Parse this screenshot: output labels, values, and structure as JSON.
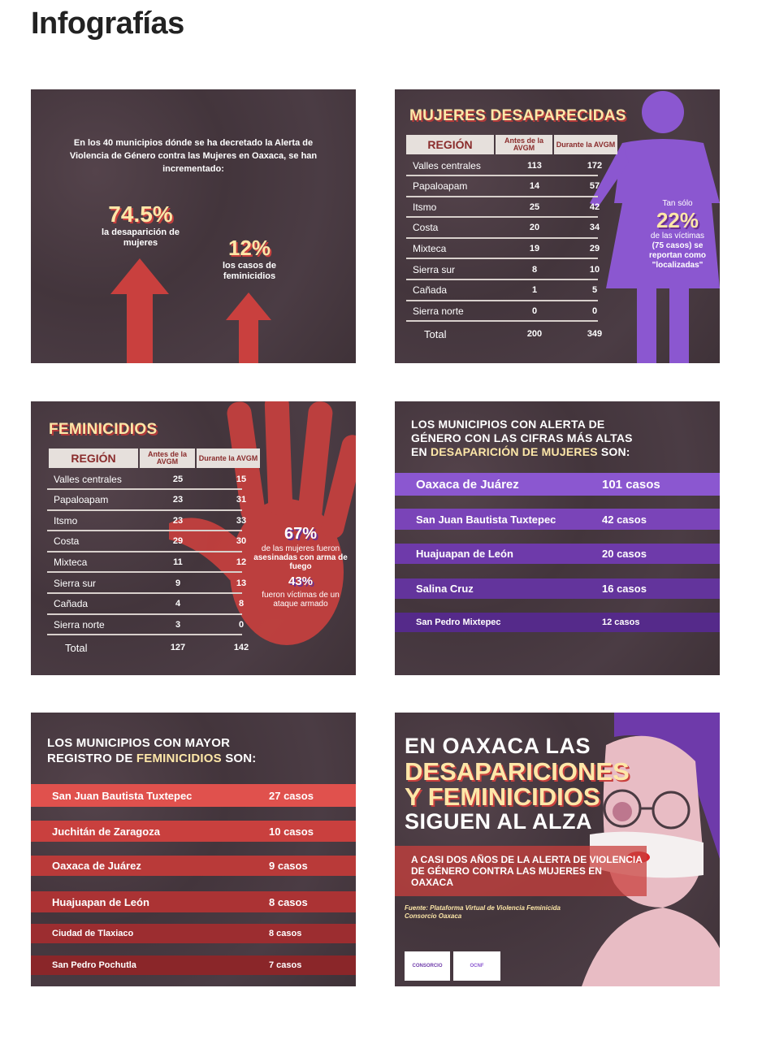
{
  "page": {
    "title": "Infografías"
  },
  "card1": {
    "intro": "En los 40 municipios dónde se ha decretado la Alerta de Violencia de Género contra las Mujeres en Oaxaca, se han incrementado:",
    "stat1_value": "74.5%",
    "stat1_label": "la desaparición de mujeres",
    "stat2_value": "12%",
    "stat2_label": "los casos de feminicidios"
  },
  "card2": {
    "title": "MUJERES DESAPARECIDAS",
    "col_region": "REGIÓN",
    "col_before": "Antes de la AVGM",
    "col_during": "Durante la AVGM",
    "rows": [
      {
        "region": "Valles centrales",
        "before": "113",
        "during": "172"
      },
      {
        "region": "Papaloapam",
        "before": "14",
        "during": "57"
      },
      {
        "region": "Itsmo",
        "before": "25",
        "during": "42"
      },
      {
        "region": "Costa",
        "before": "20",
        "during": "34"
      },
      {
        "region": "Mixteca",
        "before": "19",
        "during": "29"
      },
      {
        "region": "Sierra sur",
        "before": "8",
        "during": "10"
      },
      {
        "region": "Cañada",
        "before": "1",
        "during": "5"
      },
      {
        "region": "Sierra norte",
        "before": "0",
        "during": "0"
      }
    ],
    "total_label": "Total",
    "total_before": "200",
    "total_during": "349",
    "side_pre": "Tan sólo",
    "side_pct": "22%",
    "side_text1": "de las víctimas",
    "side_text2": "(75 casos) se reportan como \"localizadas\""
  },
  "card3": {
    "title": "FEMINICIDIOS",
    "col_region": "REGIÓN",
    "col_before": "Antes de la AVGM",
    "col_during": "Durante la AVGM",
    "rows": [
      {
        "region": "Valles centrales",
        "before": "25",
        "during": "15"
      },
      {
        "region": "Papaloapam",
        "before": "23",
        "during": "31"
      },
      {
        "region": "Itsmo",
        "before": "23",
        "during": "33"
      },
      {
        "region": "Costa",
        "before": "29",
        "during": "30"
      },
      {
        "region": "Mixteca",
        "before": "11",
        "during": "12"
      },
      {
        "region": "Sierra sur",
        "before": "9",
        "during": "13"
      },
      {
        "region": "Cañada",
        "before": "4",
        "during": "8"
      },
      {
        "region": "Sierra norte",
        "before": "3",
        "during": "0"
      }
    ],
    "total_label": "Total",
    "total_before": "127",
    "total_during": "142",
    "side_pct1": "67%",
    "side_text1a": "de las mujeres fueron",
    "side_text1b": "asesinadas con arma de fuego",
    "side_pct2": "43%",
    "side_text2": "fueron víctimas de un ataque armado"
  },
  "card4": {
    "heading_line1": "LOS MUNICIPIOS CON ALERTA DE",
    "heading_line2": "GÉNERO CON LAS CIFRAS MÁS ALTAS",
    "heading_line3_pre": "EN ",
    "heading_line3_hl": "DESAPARICIÓN DE MUJERES",
    "heading_line3_post": " SON:",
    "items": [
      {
        "name": "Oaxaca de Juárez",
        "count": "101 casos",
        "color": "#8b57d0"
      },
      {
        "name": "San Juan Bautista Tuxtepec",
        "count": "42 casos",
        "color": "#7a44b8"
      },
      {
        "name": "Huajuapan de León",
        "count": "20 casos",
        "color": "#6e3aaa"
      },
      {
        "name": "Salina Cruz",
        "count": "16 casos",
        "color": "#63349c"
      },
      {
        "name": "San Pedro Mixtepec",
        "count": "12 casos",
        "color": "#552a8a"
      }
    ]
  },
  "card5": {
    "heading_line1": "LOS MUNICIPIOS CON MAYOR",
    "heading_line2_pre": "REGISTRO DE ",
    "heading_line2_hl": "FEMINICIDIOS",
    "heading_line2_post": " SON:",
    "items": [
      {
        "name": "San Juan Bautista Tuxtepec",
        "count": "27 casos",
        "color": "#e0514d"
      },
      {
        "name": "Juchitán de Zaragoza",
        "count": "10 casos",
        "color": "#c9403e"
      },
      {
        "name": "Oaxaca de Juárez",
        "count": "9 casos",
        "color": "#b93a39"
      },
      {
        "name": "Huajuapan de León",
        "count": "8 casos",
        "color": "#ab3334"
      },
      {
        "name": "Ciudad de Tlaxiaco",
        "count": "8 casos",
        "color": "#9c2d30"
      },
      {
        "name": "San Pedro Pochutla",
        "count": "7 casos",
        "color": "#8a2629"
      }
    ]
  },
  "card6": {
    "line1": "EN OAXACA LAS",
    "line2": "DESAPARICIONES",
    "line3": "Y FEMINICIDIOS",
    "line4": "SIGUEN AL ALZA",
    "band": "A CASI DOS AÑOS DE LA ALERTA DE VIOLENCIA DE GÉNERO CONTRA LAS MUJERES EN OAXACA",
    "source1": "Fuente: Plataforma Virtual de Violencia Feminicida",
    "source2": "Consorcio Oaxaca",
    "logo1": "CONSORCIO",
    "logo2": "OCNF"
  },
  "colors": {
    "card_bg": "#4a3b42",
    "yellow": "#fde7a8",
    "red": "#c9403e",
    "purple": "#8b57d0"
  }
}
